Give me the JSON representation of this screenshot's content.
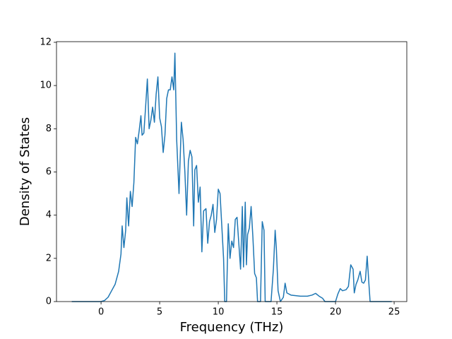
{
  "chart_data": {
    "type": "line",
    "xlabel": "Frequency (THz)",
    "ylabel": "Density of States",
    "color": "#1f77b4",
    "xlim": [
      -3.8,
      26.08
    ],
    "ylim": [
      0,
      12.03
    ],
    "xticks": [
      0,
      5,
      10,
      15,
      20,
      25
    ],
    "yticks": [
      0,
      2,
      4,
      6,
      8,
      10,
      12
    ],
    "grid": false,
    "x": [
      -2.5,
      0,
      0.3,
      0.6,
      0.9,
      1.2,
      1.5,
      1.7,
      1.8,
      1.95,
      2.1,
      2.2,
      2.35,
      2.5,
      2.65,
      2.8,
      2.95,
      3.1,
      3.25,
      3.4,
      3.5,
      3.65,
      3.8,
      3.95,
      4.1,
      4.25,
      4.4,
      4.55,
      4.7,
      4.85,
      5.0,
      5.15,
      5.3,
      5.45,
      5.6,
      5.75,
      5.9,
      6.05,
      6.2,
      6.3,
      6.45,
      6.65,
      6.85,
      7.0,
      7.15,
      7.3,
      7.45,
      7.6,
      7.75,
      7.9,
      8.0,
      8.15,
      8.3,
      8.45,
      8.6,
      8.75,
      8.95,
      9.1,
      9.25,
      9.4,
      9.55,
      9.7,
      9.85,
      10.0,
      10.15,
      10.3,
      10.45,
      10.55,
      10.7,
      10.85,
      11.0,
      11.15,
      11.3,
      11.45,
      11.6,
      11.75,
      11.9,
      12.05,
      12.15,
      12.3,
      12.4,
      12.5,
      12.65,
      12.8,
      12.95,
      13.1,
      13.25,
      13.35,
      13.6,
      13.75,
      13.9,
      14.0,
      14.5,
      14.7,
      14.85,
      14.95,
      15.1,
      15.3,
      15.55,
      15.7,
      15.85,
      16.2,
      17,
      17.6,
      18.0,
      18.3,
      18.6,
      18.9,
      19.1,
      20.0,
      20.2,
      20.4,
      20.6,
      20.9,
      21.1,
      21.3,
      21.5,
      21.6,
      21.75,
      21.9,
      22.1,
      22.25,
      22.4,
      22.55,
      22.7,
      22.85,
      22.95,
      24.8
    ],
    "values": [
      0,
      0,
      0.05,
      0.2,
      0.5,
      0.8,
      1.4,
      2.2,
      3.5,
      2.5,
      3.3,
      4.8,
      3.5,
      5.1,
      4.4,
      5.5,
      7.6,
      7.3,
      7.9,
      8.6,
      7.7,
      7.8,
      9.0,
      10.3,
      8.0,
      8.4,
      9.0,
      8.3,
      9.6,
      10.4,
      8.5,
      8.1,
      6.9,
      7.7,
      9.4,
      9.8,
      9.8,
      10.4,
      9.8,
      11.5,
      7.5,
      5.0,
      8.3,
      7.5,
      6.0,
      4.0,
      6.5,
      7.0,
      6.7,
      3.5,
      6.1,
      6.3,
      4.6,
      5.3,
      2.3,
      4.2,
      4.3,
      2.7,
      3.7,
      4.0,
      4.5,
      3.2,
      3.8,
      5.2,
      5.0,
      3.5,
      2.0,
      0,
      0,
      3.6,
      2.0,
      2.8,
      2.5,
      3.8,
      3.9,
      2.7,
      1.5,
      4.4,
      1.6,
      4.6,
      1.7,
      3.1,
      3.4,
      4.4,
      3.0,
      1.3,
      1.1,
      0,
      0,
      3.7,
      3.3,
      0,
      0,
      1.5,
      3.3,
      2.5,
      0.5,
      0,
      0.2,
      0.85,
      0.4,
      0.3,
      0.25,
      0.25,
      0.3,
      0.38,
      0.25,
      0.15,
      0,
      0,
      0.35,
      0.6,
      0.5,
      0.55,
      0.7,
      1.7,
      1.5,
      0.4,
      0.8,
      1.0,
      1.4,
      0.9,
      0.85,
      1.0,
      2.1,
      0.8,
      0,
      0
    ]
  }
}
